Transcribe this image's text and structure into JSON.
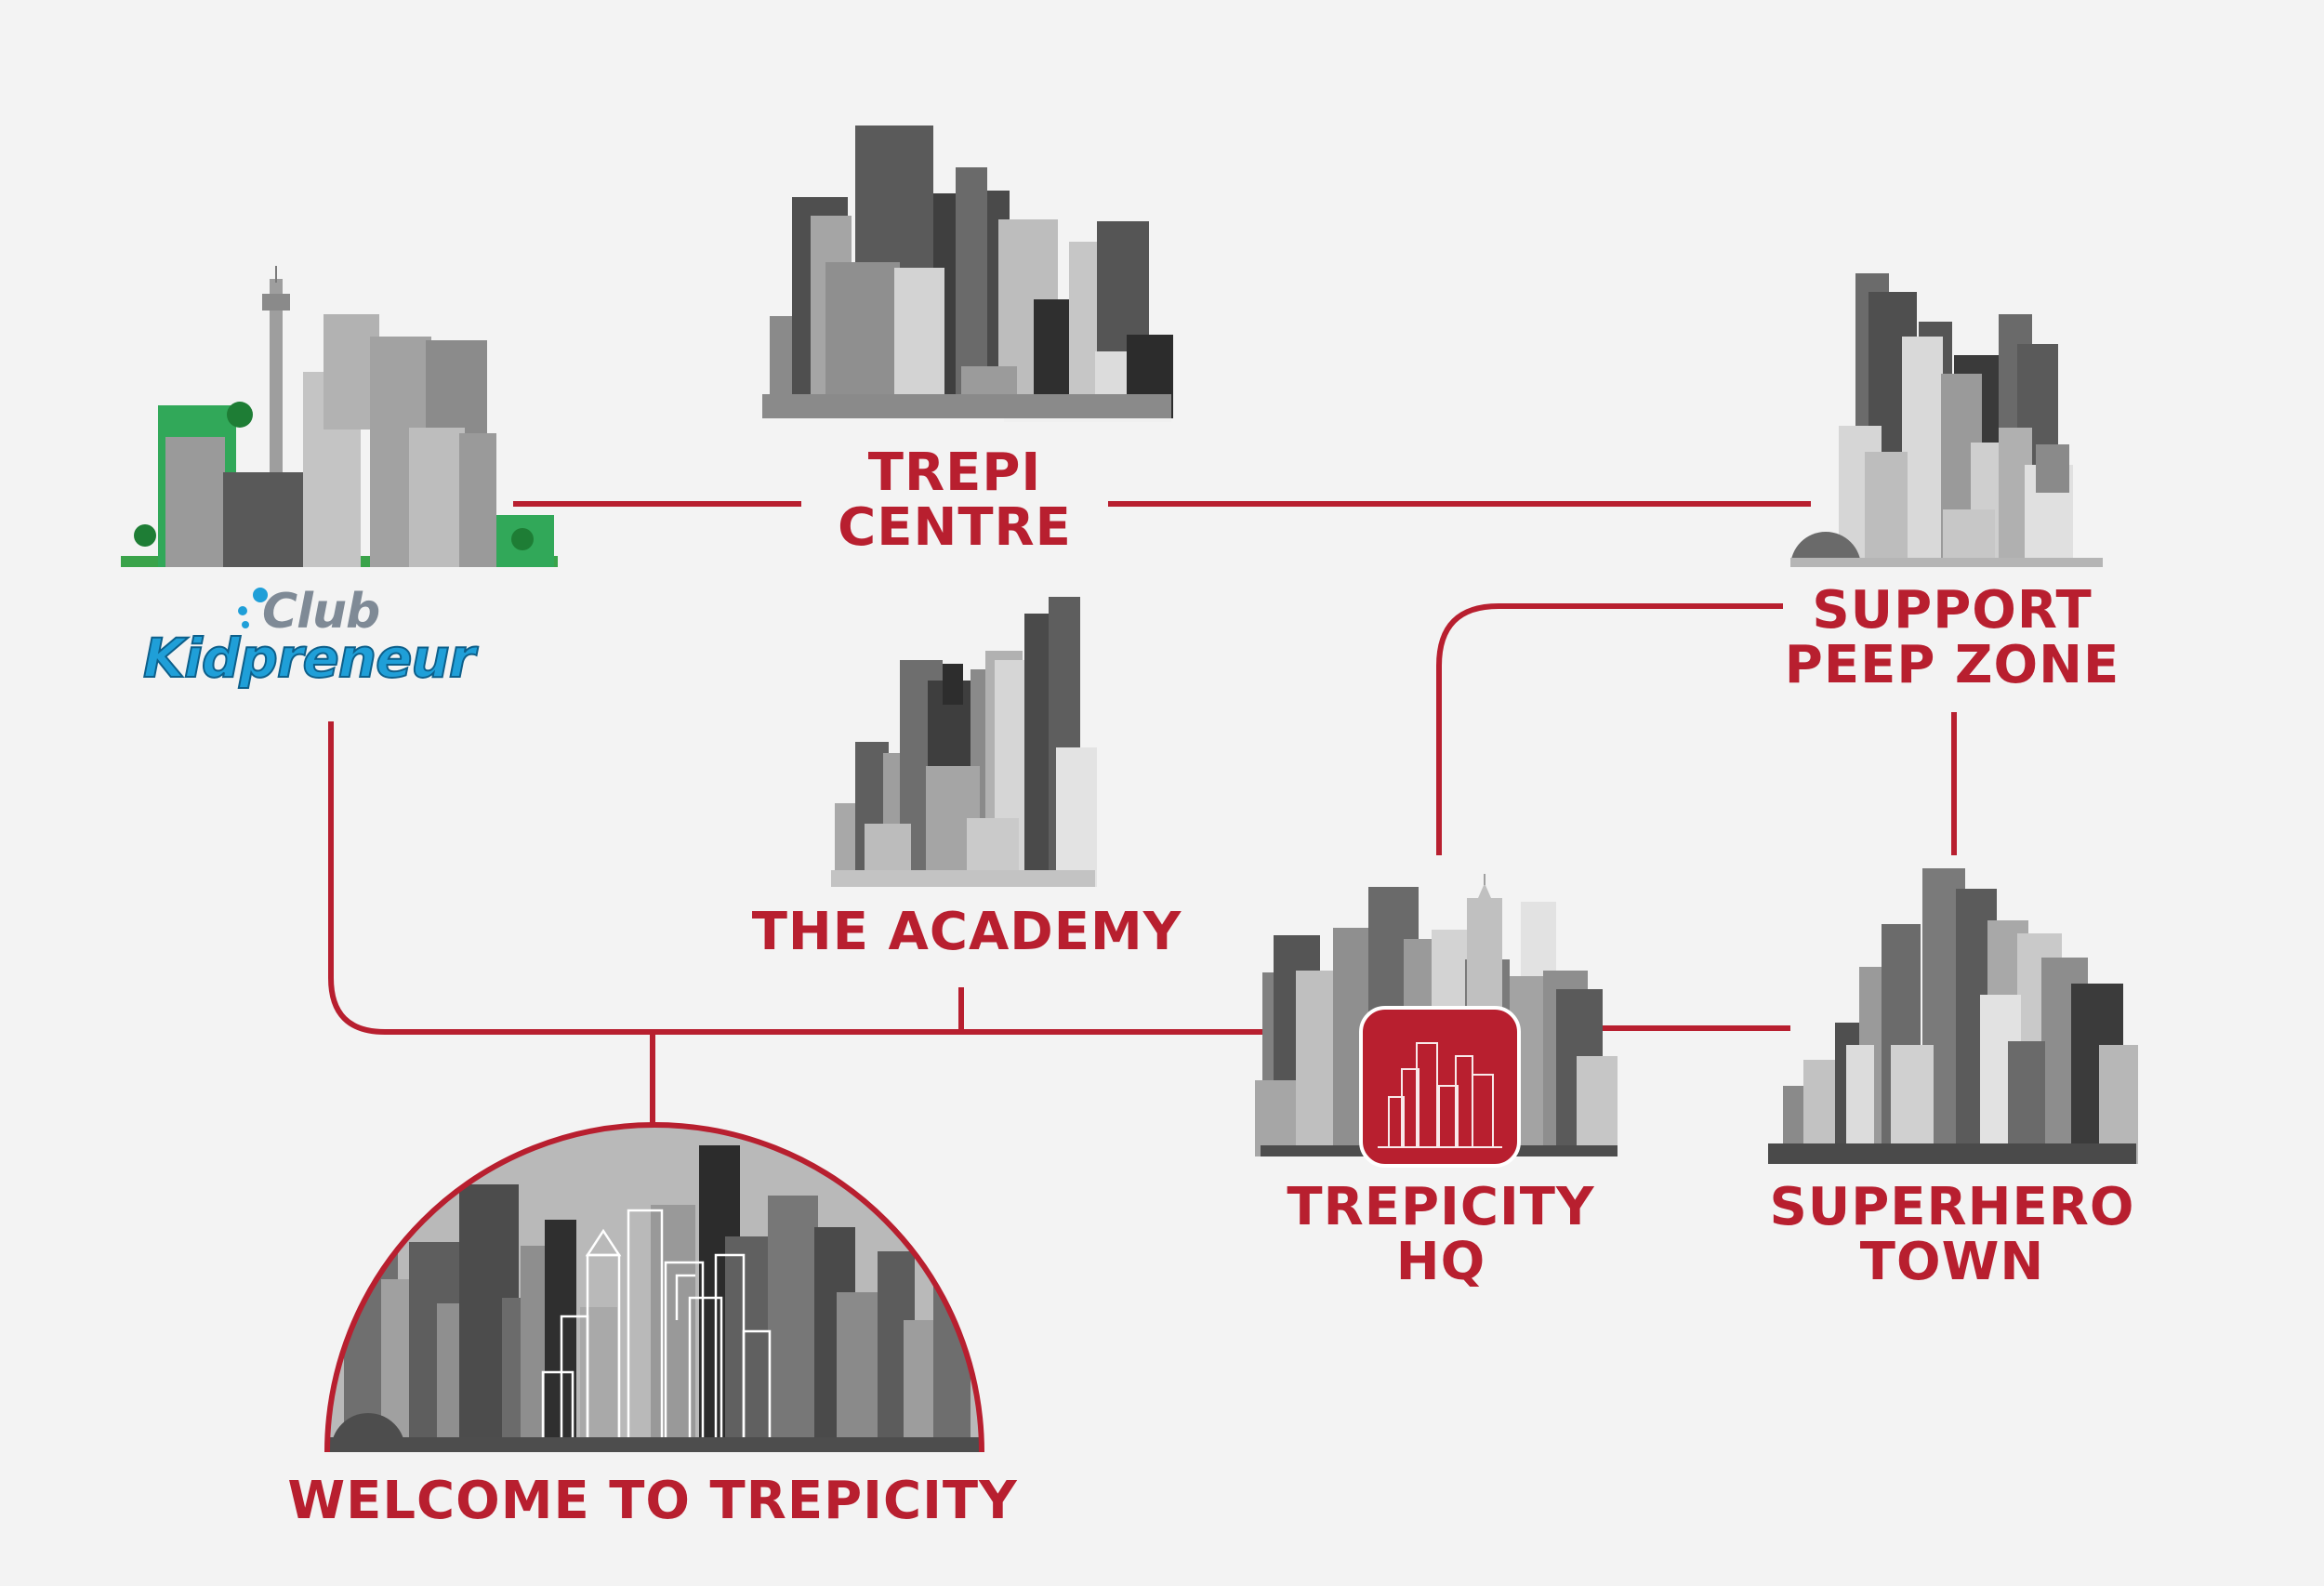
{
  "colors": {
    "accent": "#b81f2f",
    "background": "#f3f3f3"
  },
  "logo": {
    "line1": "Club",
    "line2": "Kidpreneur"
  },
  "locations": {
    "trepi_centre": {
      "line1": "TREPI",
      "line2": "CENTRE"
    },
    "support_peep_zone": {
      "line1": "SUPPORT",
      "line2": "PEEP ZONE"
    },
    "the_academy": {
      "line1": "THE ACADEMY"
    },
    "trepicity_hq": {
      "line1": "TREPICITY",
      "line2": "HQ"
    },
    "superhero_town": {
      "line1": "SUPERHERO",
      "line2": "TOWN"
    },
    "welcome": {
      "line1": "WELCOME TO TREPICITY"
    }
  }
}
